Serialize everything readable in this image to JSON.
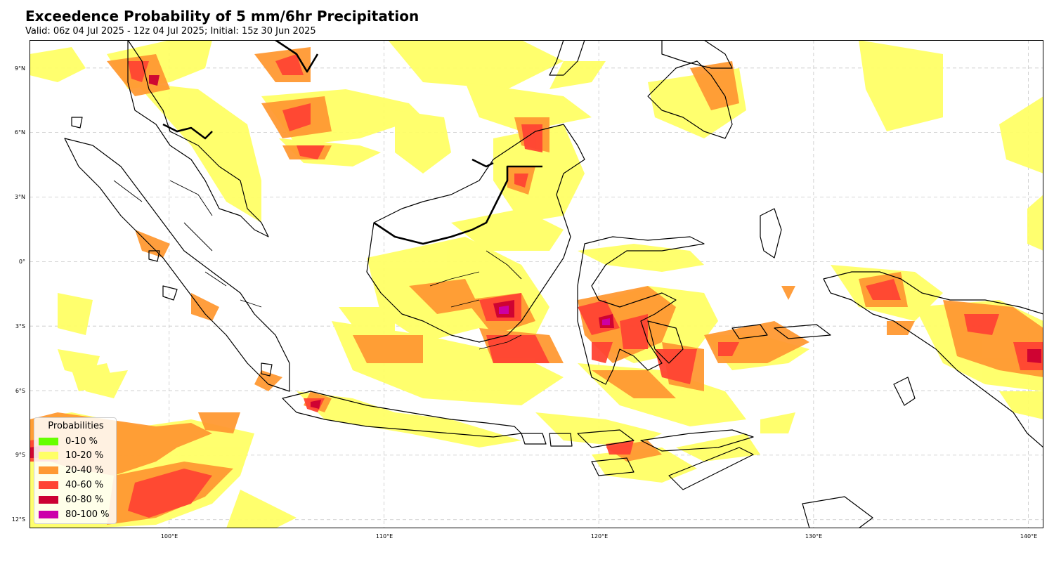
{
  "header": {
    "title": "Exceedence Probability of 5 mm/6hr Precipitation",
    "subtitle": "Valid: 06z 04 Jul 2025 - 12z 04 Jul 2025; Initial: 15z 30 Jun 2025"
  },
  "map": {
    "lon_range": [
      93.5,
      140.7
    ],
    "lat_range": [
      -12.4,
      10.3
    ],
    "lat_ticks": [
      "9°N",
      "6°N",
      "3°N",
      "0°",
      "3°S",
      "6°S",
      "9°S",
      "12°S"
    ],
    "lon_ticks": [
      "100°E",
      "110°E",
      "120°E",
      "130°E",
      "140°E"
    ],
    "gridlines": true
  },
  "legend": {
    "title": "Probabilities",
    "placement": "lower-left",
    "items": [
      {
        "label": "0-10 %",
        "color": "#66ff00"
      },
      {
        "label": "10-20 %",
        "color": "#ffff66"
      },
      {
        "label": "20-40 %",
        "color": "#ff9933"
      },
      {
        "label": "40-60 %",
        "color": "#ff4433"
      },
      {
        "label": "60-80 %",
        "color": "#cc0033"
      },
      {
        "label": "80-100 %",
        "color": "#cc00aa"
      }
    ]
  }
}
